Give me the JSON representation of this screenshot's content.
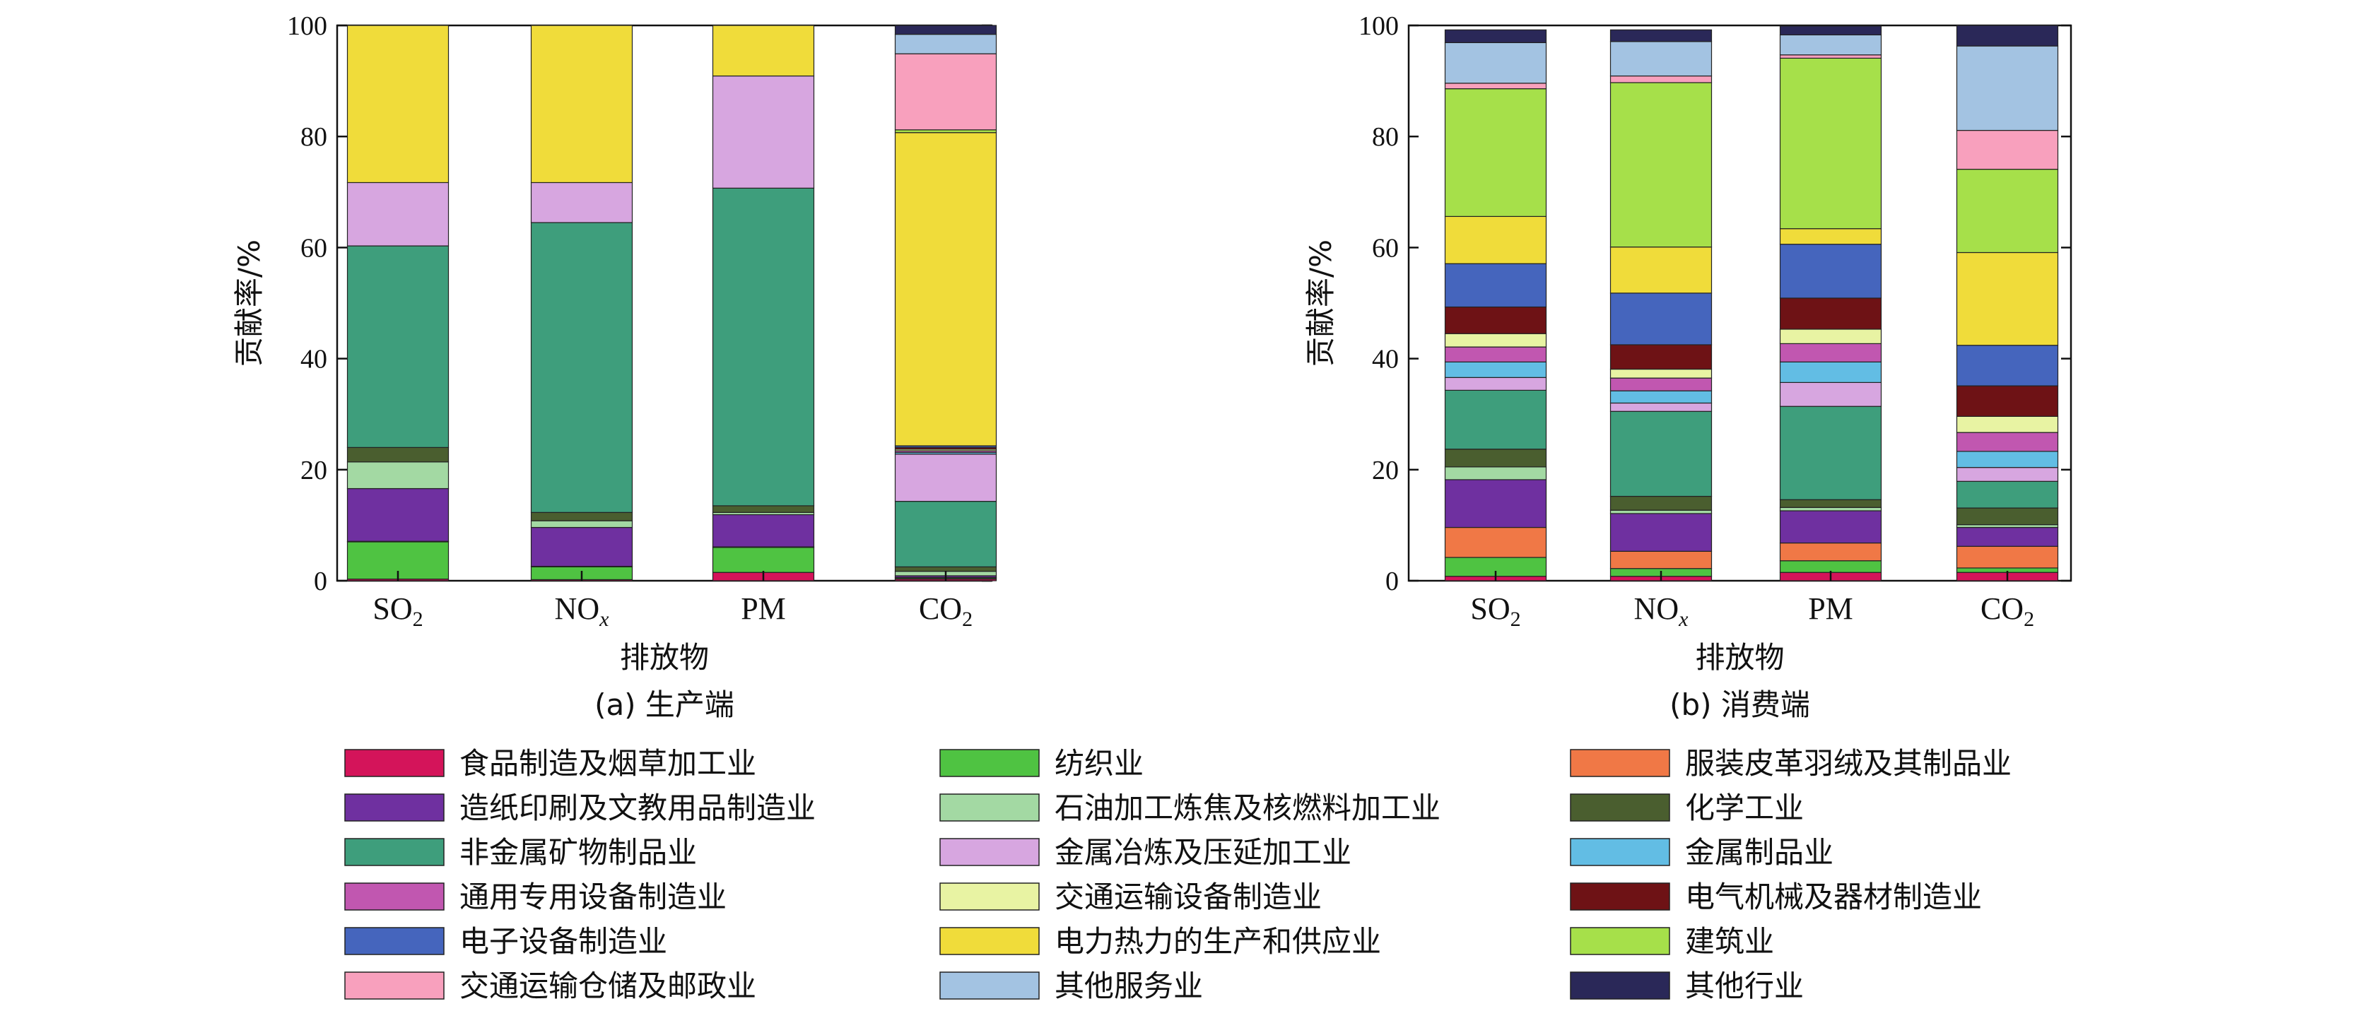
{
  "chart_data": [
    {
      "type": "bar",
      "stacked": true,
      "caption": "(a) 生产端",
      "xlabel": "排放物",
      "ylabel": "贡献率/%",
      "ylim": [
        0,
        100
      ],
      "yticks": [
        0,
        20,
        40,
        60,
        80,
        100
      ],
      "categories": [
        "SO₂",
        "NOₓ",
        "PM",
        "CO₂"
      ],
      "series": [
        {
          "name": "食品制造及烟草加工业",
          "values": [
            0.3,
            0.2,
            1.5,
            0.3
          ]
        },
        {
          "name": "纺织业",
          "values": [
            6.7,
            2.3,
            4.5,
            0.2
          ]
        },
        {
          "name": "服装皮革羽绒及其制品业",
          "values": [
            0.1,
            0.1,
            0.1,
            0.1
          ]
        },
        {
          "name": "造纸印刷及文教用品制造业",
          "values": [
            9.5,
            7.0,
            5.8,
            0.3
          ]
        },
        {
          "name": "石油加工炼焦及核燃料加工业",
          "values": [
            4.8,
            1.2,
            0.4,
            0.8
          ]
        },
        {
          "name": "化学工业",
          "values": [
            2.6,
            1.5,
            1.2,
            0.8
          ]
        },
        {
          "name": "非金属矿物制品业",
          "values": [
            36.3,
            52.2,
            57.2,
            11.8
          ]
        },
        {
          "name": "金属冶炼及压延加工业",
          "values": [
            11.4,
            7.2,
            20.2,
            8.5
          ]
        },
        {
          "name": "金属制品业",
          "values": [
            0,
            0,
            0,
            0.3
          ]
        },
        {
          "name": "通用专用设备制造业",
          "values": [
            0,
            0,
            0,
            0.3
          ]
        },
        {
          "name": "交通运输设备制造业",
          "values": [
            0,
            0,
            0,
            0.3
          ]
        },
        {
          "name": "电气机械及器材制造业",
          "values": [
            0,
            0,
            0,
            0.3
          ]
        },
        {
          "name": "电子设备制造业",
          "values": [
            0,
            0,
            0,
            0.3
          ]
        },
        {
          "name": "电力热力的生产和供应业",
          "values": [
            28.3,
            28.3,
            9.1,
            56.4
          ]
        },
        {
          "name": "建筑业",
          "values": [
            0,
            0,
            0,
            0.5
          ]
        },
        {
          "name": "交通运输仓储及邮政业",
          "values": [
            0,
            0,
            0,
            13.7
          ]
        },
        {
          "name": "其他服务业",
          "values": [
            0,
            0,
            0,
            3.5
          ]
        },
        {
          "name": "其他行业",
          "values": [
            0,
            0,
            0,
            1.6
          ]
        }
      ]
    },
    {
      "type": "bar",
      "stacked": true,
      "caption": "(b) 消费端",
      "xlabel": "排放物",
      "ylabel": "贡献率/%",
      "ylim": [
        0,
        100
      ],
      "yticks": [
        0,
        20,
        40,
        60,
        80,
        100
      ],
      "categories": [
        "SO₂",
        "NOₓ",
        "PM",
        "CO₂"
      ],
      "series": [
        {
          "name": "食品制造及烟草加工业",
          "values": [
            0.8,
            0.8,
            1.5,
            1.5
          ]
        },
        {
          "name": "纺织业",
          "values": [
            3.4,
            1.4,
            2.1,
            0.8
          ]
        },
        {
          "name": "服装皮革羽绒及其制品业",
          "values": [
            5.4,
            3.1,
            3.2,
            3.9
          ]
        },
        {
          "name": "造纸印刷及文教用品制造业",
          "values": [
            8.6,
            6.8,
            5.8,
            3.4
          ]
        },
        {
          "name": "石油加工炼焦及核燃料加工业",
          "values": [
            2.3,
            0.6,
            0.6,
            0.5
          ]
        },
        {
          "name": "化学工业",
          "values": [
            3.2,
            2.5,
            1.4,
            3.0
          ]
        },
        {
          "name": "非金属矿物制品业",
          "values": [
            10.6,
            15.3,
            16.8,
            4.8
          ]
        },
        {
          "name": "金属冶炼及压延加工业",
          "values": [
            2.3,
            1.5,
            4.3,
            2.5
          ]
        },
        {
          "name": "金属制品业",
          "values": [
            2.8,
            2.2,
            3.7,
            2.9
          ]
        },
        {
          "name": "通用专用设备制造业",
          "values": [
            2.7,
            2.3,
            3.3,
            3.4
          ]
        },
        {
          "name": "交通运输设备制造业",
          "values": [
            2.4,
            1.6,
            2.6,
            2.9
          ]
        },
        {
          "name": "电气机械及器材制造业",
          "values": [
            4.8,
            4.4,
            5.6,
            5.5
          ]
        },
        {
          "name": "电子设备制造业",
          "values": [
            7.8,
            9.3,
            9.7,
            7.3
          ]
        },
        {
          "name": "电力热力的生产和供应业",
          "values": [
            8.5,
            8.3,
            2.8,
            16.7
          ]
        },
        {
          "name": "建筑业",
          "values": [
            23.0,
            29.6,
            30.7,
            15.0
          ]
        },
        {
          "name": "交通运输仓储及邮政业",
          "values": [
            1.0,
            1.2,
            0.6,
            7.0
          ]
        },
        {
          "name": "其他服务业",
          "values": [
            7.3,
            6.2,
            3.6,
            15.2
          ]
        },
        {
          "name": "其他行业",
          "values": [
            2.3,
            2.1,
            1.6,
            3.7
          ]
        }
      ]
    }
  ],
  "colors": [
    "#d4145a",
    "#4fc342",
    "#f07846",
    "#6f30a0",
    "#a3d9a3",
    "#4a5e2f",
    "#3e9e7c",
    "#d7a6e0",
    "#62bde4",
    "#c157b0",
    "#e8f3a3",
    "#6e1215",
    "#4565bd",
    "#f0dc3a",
    "#a6e04a",
    "#f8a0bd",
    "#a3c3e2",
    "#2a2858"
  ],
  "legend": [
    "食品制造及烟草加工业",
    "纺织业",
    "服装皮革羽绒及其制品业",
    "造纸印刷及文教用品制造业",
    "石油加工炼焦及核燃料加工业",
    "化学工业",
    "非金属矿物制品业",
    "金属冶炼及压延加工业",
    "金属制品业",
    "通用专用设备制造业",
    "交通运输设备制造业",
    "电气机械及器材制造业",
    "电子设备制造业",
    "电力热力的生产和供应业",
    "建筑业",
    "交通运输仓储及邮政业",
    "其他服务业",
    "其他行业"
  ]
}
